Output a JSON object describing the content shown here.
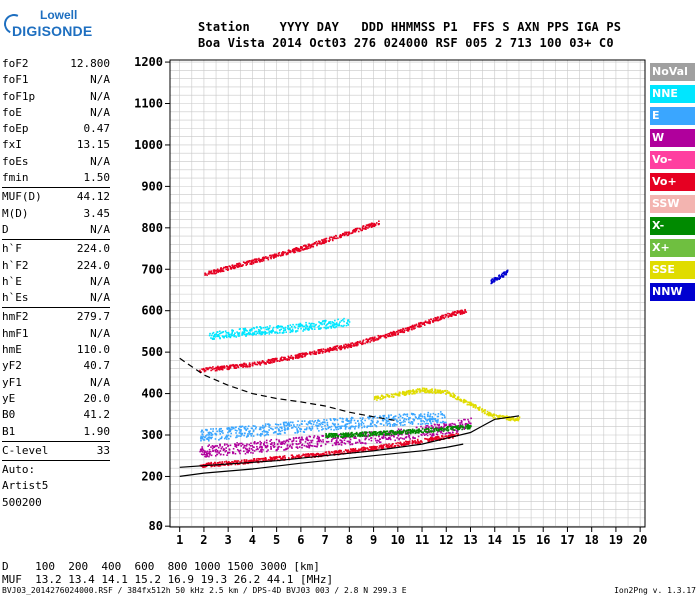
{
  "logo": {
    "line1": "Lowell",
    "line2": "DIGISONDE"
  },
  "header": {
    "row1": "Station    YYYY DAY   DDD HHMMSS P1  FFS S AXN PPS IGA PS",
    "row2": "Boa Vista 2014 Oct03 276 024000 RSF 005 2 713 100 03+ C0"
  },
  "params": {
    "groups": [
      [
        [
          "foF2",
          "12.800"
        ],
        [
          "foF1",
          "N/A"
        ],
        [
          "foF1p",
          "N/A"
        ],
        [
          "foE",
          "N/A"
        ],
        [
          "foEp",
          "0.47"
        ],
        [
          "fxI",
          "13.15"
        ],
        [
          "foEs",
          "N/A"
        ],
        [
          "fmin",
          "1.50"
        ]
      ],
      [
        [
          "MUF(D)",
          "44.12"
        ],
        [
          "M(D)",
          "3.45"
        ],
        [
          "D",
          "N/A"
        ]
      ],
      [
        [
          "h`F",
          "224.0"
        ],
        [
          "h`F2",
          "224.0"
        ],
        [
          "h`E",
          "N/A"
        ],
        [
          "h`Es",
          "N/A"
        ]
      ],
      [
        [
          "hmF2",
          "279.7"
        ],
        [
          "hmF1",
          "N/A"
        ],
        [
          "hmE",
          "110.0"
        ],
        [
          "yF2",
          "40.7"
        ],
        [
          "yF1",
          "N/A"
        ],
        [
          "yE",
          "20.0"
        ],
        [
          "B0",
          "41.2"
        ],
        [
          "B1",
          "1.90"
        ]
      ],
      [
        [
          "C-level",
          "33"
        ]
      ]
    ],
    "auto_lines": [
      "Auto:",
      "Artist5",
      "500200"
    ]
  },
  "distance_table": {
    "row1": "D    100  200  400  600  800 1000 1500 3000 [km]",
    "row2": "MUF  13.2 13.4 14.1 15.2 16.9 19.3 26.2 44.1 [MHz]"
  },
  "footer": {
    "left": "BVJ03_2014276024000.RSF / 384fx512h 50 kHz 2.5 km / DPS-4D BVJ03 003 / 2.8 N 299.3 E",
    "right": "Ion2Png v. 1.3.17"
  },
  "legend": [
    {
      "label": "NoVal",
      "color": "#a0a0a0"
    },
    {
      "label": "NNE",
      "color": "#00e6ff"
    },
    {
      "label": "E",
      "color": "#3aa6ff"
    },
    {
      "label": "W",
      "color": "#b0009c"
    },
    {
      "label": "Vo-",
      "color": "#ff3fa0"
    },
    {
      "label": "Vo+",
      "color": "#e60022"
    },
    {
      "label": "SSW",
      "color": "#f3b4b0"
    },
    {
      "label": "X-",
      "color": "#008a00"
    },
    {
      "label": "X+",
      "color": "#6fbf40"
    },
    {
      "label": "SSE",
      "color": "#e0dc00"
    },
    {
      "label": "NNW",
      "color": "#0000d0"
    }
  ],
  "chart_data": {
    "type": "scatter",
    "xlim": [
      0.6,
      20.2
    ],
    "ylim": [
      78,
      1205
    ],
    "x_ticks": [
      1,
      2,
      3,
      4,
      5,
      6,
      7,
      8,
      9,
      10,
      11,
      12,
      13,
      14,
      15,
      16,
      17,
      18,
      19,
      20
    ],
    "y_ticks": [
      80,
      200,
      300,
      400,
      500,
      600,
      700,
      800,
      900,
      1000,
      1100,
      1200
    ],
    "grid": true,
    "legend_position": "right",
    "traces": [
      {
        "name": "Vo+",
        "color": "#e60022",
        "points": [
          [
            1.8,
            228
          ],
          [
            3,
            234
          ],
          [
            5,
            245
          ],
          [
            7,
            256
          ],
          [
            9,
            270
          ],
          [
            11,
            288
          ],
          [
            12.5,
            302
          ]
        ]
      },
      {
        "name": "Vo+",
        "color": "#e60022",
        "points": [
          [
            1.8,
            458
          ],
          [
            4,
            472
          ],
          [
            6,
            494
          ],
          [
            8,
            518
          ],
          [
            10,
            550
          ],
          [
            12,
            590
          ],
          [
            12.8,
            602
          ]
        ]
      },
      {
        "name": "Vo+",
        "color": "#e60022",
        "points": [
          [
            2,
            690
          ],
          [
            4,
            720
          ],
          [
            6,
            752
          ],
          [
            8,
            790
          ],
          [
            9.2,
            815
          ]
        ]
      },
      {
        "name": "W",
        "color": "#b0009c",
        "points": [
          [
            1.8,
            262
          ],
          [
            4,
            272
          ],
          [
            6,
            284
          ],
          [
            8,
            292
          ],
          [
            10,
            302
          ],
          [
            12,
            318
          ],
          [
            13,
            330
          ]
        ]
      },
      {
        "name": "E",
        "color": "#3aa6ff",
        "points": [
          [
            1.8,
            300
          ],
          [
            4,
            312
          ],
          [
            6,
            322
          ],
          [
            8,
            330
          ],
          [
            10,
            338
          ],
          [
            12,
            345
          ]
        ]
      },
      {
        "name": "NNE",
        "color": "#00e6ff",
        "points": [
          [
            2.2,
            540
          ],
          [
            4,
            552
          ],
          [
            6,
            562
          ],
          [
            8,
            575
          ]
        ]
      },
      {
        "name": "SSE",
        "color": "#e0dc00",
        "points": [
          [
            9,
            390
          ],
          [
            10,
            400
          ],
          [
            11,
            410
          ],
          [
            12,
            405
          ],
          [
            14,
            345
          ],
          [
            15,
            340
          ]
        ]
      },
      {
        "name": "NNW",
        "color": "#0000d0",
        "points": [
          [
            13.8,
            672
          ],
          [
            14.2,
            684
          ],
          [
            14.5,
            696
          ]
        ]
      },
      {
        "name": "X-",
        "color": "#008a00",
        "points": [
          [
            7,
            300
          ],
          [
            9,
            305
          ],
          [
            11,
            312
          ],
          [
            13,
            322
          ]
        ]
      }
    ],
    "profile_curves": [
      {
        "style": "solid",
        "points": [
          [
            1,
            200
          ],
          [
            2,
            208
          ],
          [
            4,
            218
          ],
          [
            6,
            232
          ],
          [
            8,
            244
          ],
          [
            10,
            256
          ],
          [
            11,
            262
          ],
          [
            12,
            270
          ],
          [
            12.7,
            278
          ]
        ]
      },
      {
        "style": "solid",
        "points": [
          [
            1,
            222
          ],
          [
            3,
            230
          ],
          [
            5,
            238
          ],
          [
            7,
            250
          ],
          [
            9,
            262
          ],
          [
            11,
            278
          ],
          [
            12,
            292
          ],
          [
            13,
            306
          ],
          [
            13.5,
            322
          ],
          [
            14,
            338
          ],
          [
            15,
            346
          ]
        ]
      },
      {
        "style": "dashed",
        "points": [
          [
            1,
            485
          ],
          [
            2,
            445
          ],
          [
            3,
            420
          ],
          [
            4,
            400
          ],
          [
            5,
            388
          ],
          [
            6,
            380
          ],
          [
            7,
            370
          ],
          [
            8,
            355
          ],
          [
            9,
            344
          ],
          [
            10,
            334
          ]
        ]
      }
    ]
  }
}
